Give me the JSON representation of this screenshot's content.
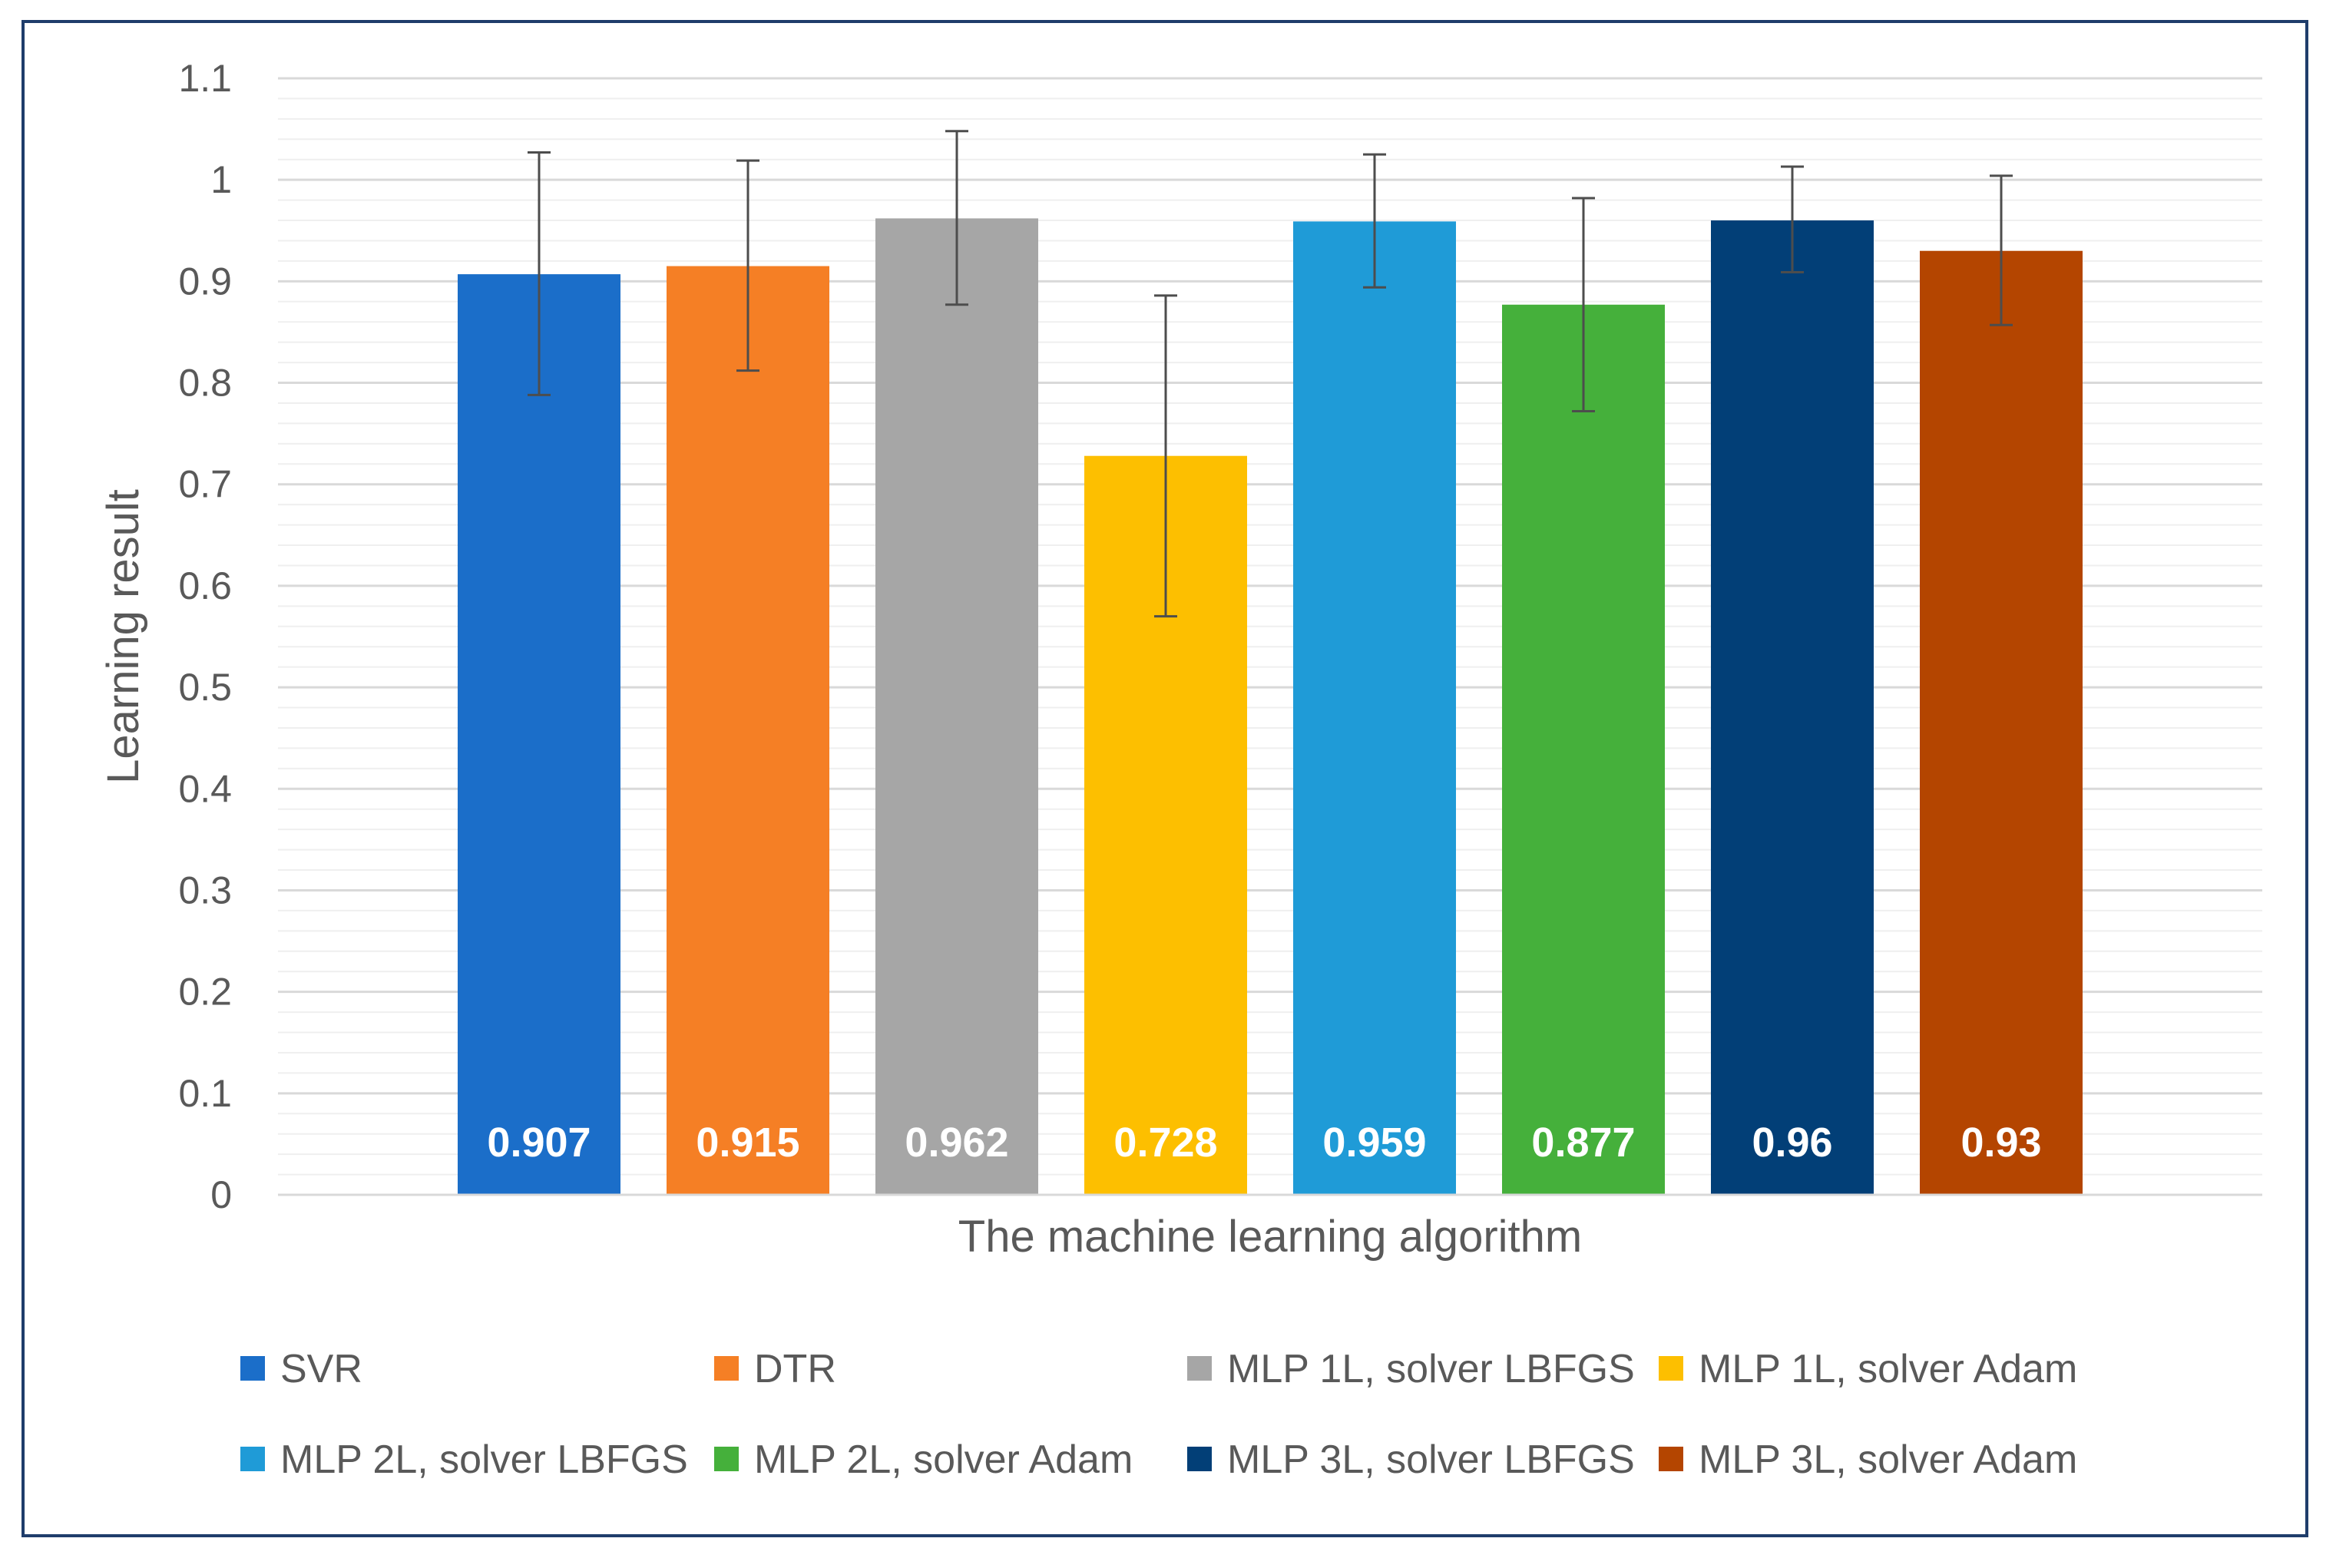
{
  "chart_data": {
    "type": "bar",
    "title": "",
    "xlabel": "The machine learning algorithm",
    "ylabel": "Learning result",
    "ylim": [
      0,
      1.1
    ],
    "yticks": [
      "0",
      "0.1",
      "0.2",
      "0.3",
      "0.4",
      "0.5",
      "0.6",
      "0.7",
      "0.8",
      "0.9",
      "1",
      "1.1"
    ],
    "grid": true,
    "legend_position": "bottom",
    "series": [
      {
        "name": "SVR",
        "value": 0.907,
        "label": "0.907",
        "error_low": 0.788,
        "error_high": 1.027,
        "color": "#1b6ec9"
      },
      {
        "name": "DTR",
        "value": 0.915,
        "label": "0.915",
        "error_low": 0.812,
        "error_high": 1.019,
        "color": "#f57f25"
      },
      {
        "name": "MLP 1L, solver LBFGS",
        "value": 0.962,
        "label": "0.962",
        "error_low": 0.877,
        "error_high": 1.048,
        "color": "#a6a6a6"
      },
      {
        "name": "MLP 1L, solver Adam",
        "value": 0.728,
        "label": "0.728",
        "error_low": 0.57,
        "error_high": 0.886,
        "color": "#fdbf00"
      },
      {
        "name": "MLP 2L, solver LBFGS",
        "value": 0.959,
        "label": "0.959",
        "error_low": 0.894,
        "error_high": 1.025,
        "color": "#1f9bd7"
      },
      {
        "name": "MLP 2L, solver Adam",
        "value": 0.877,
        "label": "0.877",
        "error_low": 0.772,
        "error_high": 0.982,
        "color": "#45b03b"
      },
      {
        "name": "MLP 3L, solver LBFGS",
        "value": 0.96,
        "label": "0.96",
        "error_low": 0.909,
        "error_high": 1.013,
        "color": "#023f77"
      },
      {
        "name": "MLP 3L, solver Adam",
        "value": 0.93,
        "label": "0.93",
        "error_low": 0.857,
        "error_high": 1.004,
        "color": "#b44500"
      }
    ]
  }
}
